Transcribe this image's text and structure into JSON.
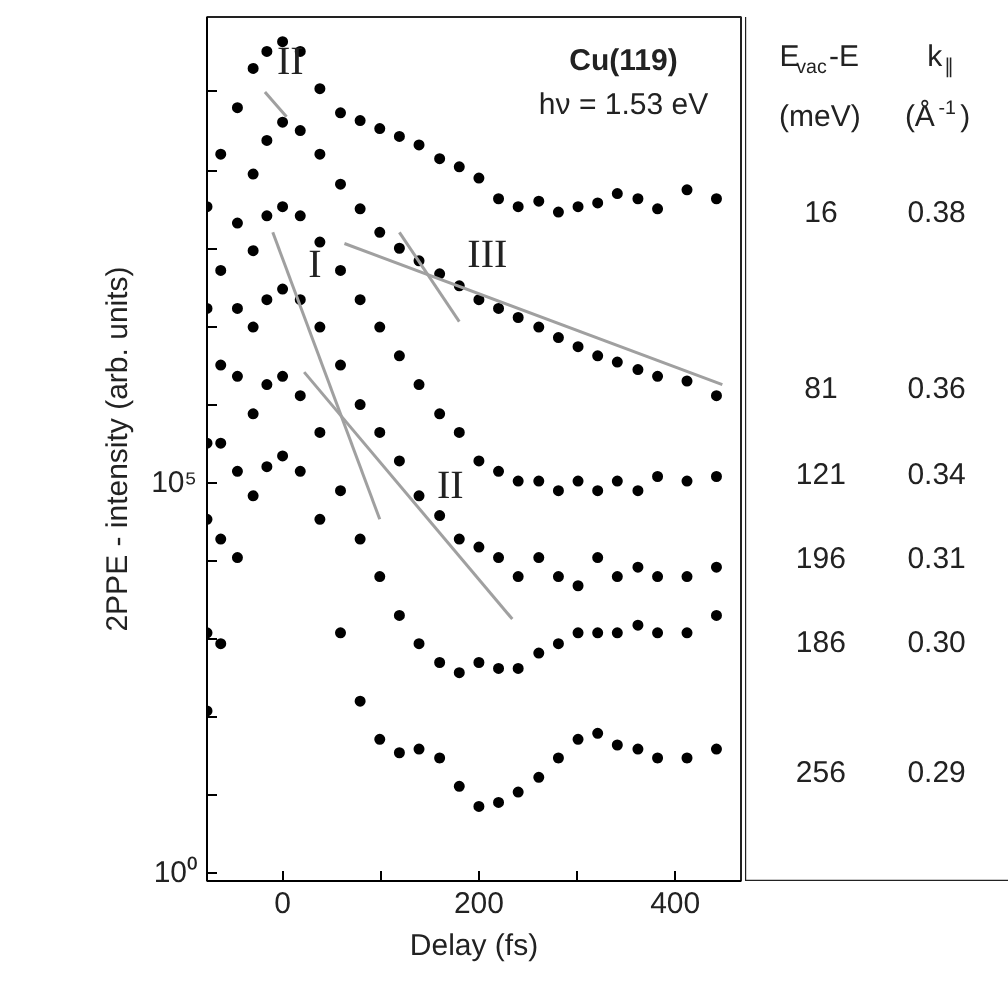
{
  "chart_data": [
    {
      "type": "scatter",
      "xlabel": "Delay (fs)",
      "ylabel": "2PPE - intensity (arb. units)",
      "log": "y",
      "xlim": [
        -77,
        467
      ],
      "xticks": [
        0,
        {
          "value": 100,
          "label": null
        },
        200,
        {
          "value": 300,
          "label": null
        },
        400
      ],
      "ylim": [
        0.8,
        91000000000.0
      ],
      "yticks": [
        {
          "value": 1,
          "label": "10⁰"
        },
        {
          "value": 10,
          "label": null
        },
        {
          "value": 100,
          "label": null
        },
        {
          "value": 1000,
          "label": null
        },
        {
          "value": 10000,
          "label": null
        },
        {
          "value": 100000,
          "label": "10⁵"
        },
        {
          "value": 1000000,
          "label": null
        },
        {
          "value": 10000000,
          "label": null
        },
        {
          "value": 100000000,
          "label": null
        },
        {
          "value": 1000000000,
          "label": null
        },
        {
          "value": 10000000000,
          "label": null
        }
      ],
      "x": [
        -77,
        -63,
        -46,
        -30,
        -16,
        0,
        18,
        38,
        59,
        79,
        99,
        119,
        139,
        160,
        180,
        200,
        220,
        240,
        261,
        281,
        301,
        321,
        341,
        362,
        382,
        412,
        442
      ],
      "series": [
        {
          "color": "#000000",
          "marker": "circle",
          "values": [
            340000000.0,
            1600000000.0,
            6300000000.0,
            20000000000.0,
            33000000000.0,
            44000000000.0,
            33000000000.0,
            11000000000.0,
            5400000000.0,
            4300000000.0,
            3400000000.0,
            2700000000.0,
            2100000000.0,
            1400000000.0,
            1100000000.0,
            790000000.0,
            430000000.0,
            340000000.0,
            400000000.0,
            290000000.0,
            340000000.0,
            380000000.0,
            500000000.0,
            430000000.0,
            320000000.0,
            560000000.0,
            430000000.0
          ]
        },
        {
          "color": "#000000",
          "marker": "circle",
          "values": [
            17000000.0,
            52000000.0,
            210000000.0,
            890000000.0,
            2400000000.0,
            4100000000.0,
            3200000000.0,
            1600000000.0,
            660000000.0,
            320000000.0,
            160000000.0,
            100000000.0,
            69000000.0,
            47000000.0,
            33000000.0,
            22000000.0,
            17000000.0,
            13000000.0,
            9800000.0,
            7200000.0,
            5500000.0,
            4200000.0,
            3500000.0,
            2800000.0,
            2300000.0,
            2000000.0,
            1300000.0
          ]
        },
        {
          "color": "#000000",
          "marker": "circle",
          "values": [
            320000.0,
            3200000.0,
            17000000.0,
            93000000.0,
            260000000.0,
            340000000.0,
            260000000.0,
            120000000.0,
            52000000.0,
            22000000.0,
            9800000.0,
            4200000.0,
            1800000.0,
            760000.0,
            440000.0,
            190000.0,
            140000.0,
            105000.0,
            105000.0,
            79000.0,
            105000.0,
            79000.0,
            105000.0,
            79000.0,
            120000.0,
            105000.0,
            120000.0
          ]
        },
        {
          "color": "#000000",
          "marker": "circle",
          "values": [
            34000.0,
            320000.0,
            2300000.0,
            9800000.0,
            22000000.0,
            30000000.0,
            22000000.0,
            9800000.0,
            3200000.0,
            1000000.0,
            440000.0,
            190000.0,
            68000.0,
            38000.0,
            19000.0,
            15000.0,
            11000.0,
            6300.0,
            11000.0,
            6300.0,
            4800.0,
            11000.0,
            6300.0,
            8300.0,
            6300.0,
            6300.0,
            8300.0
          ]
        },
        {
          "color": "#000000",
          "marker": "circle",
          "values": [
            1200.0,
            19000.0,
            140000.0,
            760000.0,
            1800000.0,
            2300000.0,
            1300000.0,
            440000.0,
            79000.0,
            19000.0,
            6300.0,
            2000.0,
            870,
            500,
            370,
            500,
            420,
            420,
            660,
            870,
            1200.0,
            1200.0,
            1200.0,
            1500.0,
            1200.0,
            1200.0,
            2000.0
          ]
        },
        {
          "color": "#000000",
          "marker": "circle",
          "values": [
            120,
            870,
            11000.0,
            68000.0,
            160000.0,
            220000.0,
            140000.0,
            34000.0,
            1200.0,
            160,
            52,
            35,
            39,
            30,
            13,
            7.2,
            8.1,
            11,
            17,
            30,
            52,
            62,
            44,
            39,
            30,
            30,
            39
          ]
        },
        {
          "type": "line",
          "color": "#a0a0a0",
          "x": [
            -18,
            4
          ],
          "values": [
            10000000000.0,
            4800000000.0
          ]
        },
        {
          "type": "line",
          "color": "#a0a0a0",
          "x": [
            63,
            448
          ],
          "values": [
            115000000.0,
            1800000.0
          ]
        },
        {
          "type": "line",
          "color": "#a0a0a0",
          "x": [
            119,
            180
          ],
          "values": [
            160000000.0,
            11500000.0
          ]
        },
        {
          "type": "line",
          "color": "#a0a0a0",
          "x": [
            -10,
            99
          ],
          "values": [
            160000000.0,
            34000.0
          ]
        },
        {
          "type": "line",
          "color": "#a0a0a0",
          "x": [
            22,
            234
          ],
          "values": [
            2600000.0,
            1800.0
          ]
        }
      ],
      "annotations": [
        "Cu(119)",
        "hν = 1.53 eV",
        {
          "text": "II",
          "x": -18,
          "y": 10000000000.0
        },
        {
          "text": "I",
          "x": 14,
          "y": 25000000.0
        },
        {
          "text": "III",
          "x": 176,
          "y": 34000000.0
        },
        {
          "text": "II",
          "x": 145,
          "y": 38000.0
        }
      ]
    },
    {
      "type": "other",
      "annotations": [
        "E$_{vac}$-E",
        "k$_{∥}$",
        "(meV)",
        "(Å$^{-1}$)",
        "16",
        "0.38",
        "81",
        "0.36",
        "121",
        "0.34",
        "196",
        "0.31",
        "186",
        "0.30",
        "256",
        "0.29"
      ]
    }
  ]
}
